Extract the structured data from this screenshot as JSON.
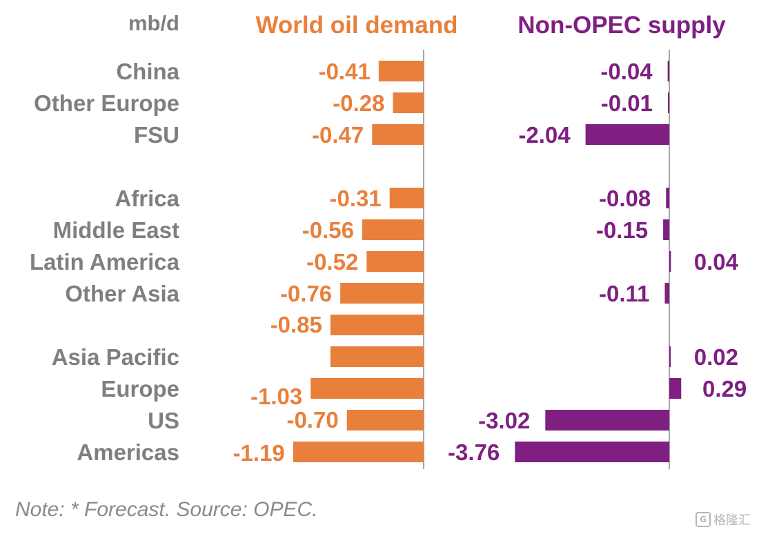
{
  "chart_data": {
    "type": "bar",
    "orientation": "horizontal",
    "unit_label": "mb/d",
    "categories": [
      "China",
      "Other Europe",
      "FSU",
      "Africa",
      "Middle East",
      "Latin America",
      "Other Asia",
      "",
      "Asia Pacific",
      "Europe",
      "US",
      "Americas"
    ],
    "series": [
      {
        "name": "World oil demand",
        "color": "#e8803c",
        "values": [
          -0.41,
          -0.28,
          -0.47,
          -0.31,
          -0.56,
          -0.52,
          -0.76,
          -0.85,
          -0.85,
          -1.03,
          -0.7,
          -1.19
        ],
        "value_labels": [
          "-0.41",
          "-0.28",
          "-0.47",
          "-0.31",
          "-0.56",
          "-0.52",
          "-0.76",
          "-0.85",
          "",
          "-1.03",
          "-0.70",
          "-1.19"
        ]
      },
      {
        "name": "Non-OPEC supply",
        "color": "#7f1f82",
        "values": [
          -0.04,
          -0.01,
          -2.04,
          -0.08,
          -0.15,
          0.04,
          -0.11,
          null,
          0.02,
          0.29,
          -3.02,
          -3.76
        ],
        "value_labels": [
          "-0.04",
          "-0.01",
          "-2.04",
          "-0.08",
          "-0.15",
          "0.04",
          "-0.11",
          "",
          "0.02",
          "0.29",
          "-3.02",
          "-3.76"
        ]
      }
    ],
    "note": "Note: * Forecast. Source: OPEC.",
    "watermark": "格隆汇"
  }
}
